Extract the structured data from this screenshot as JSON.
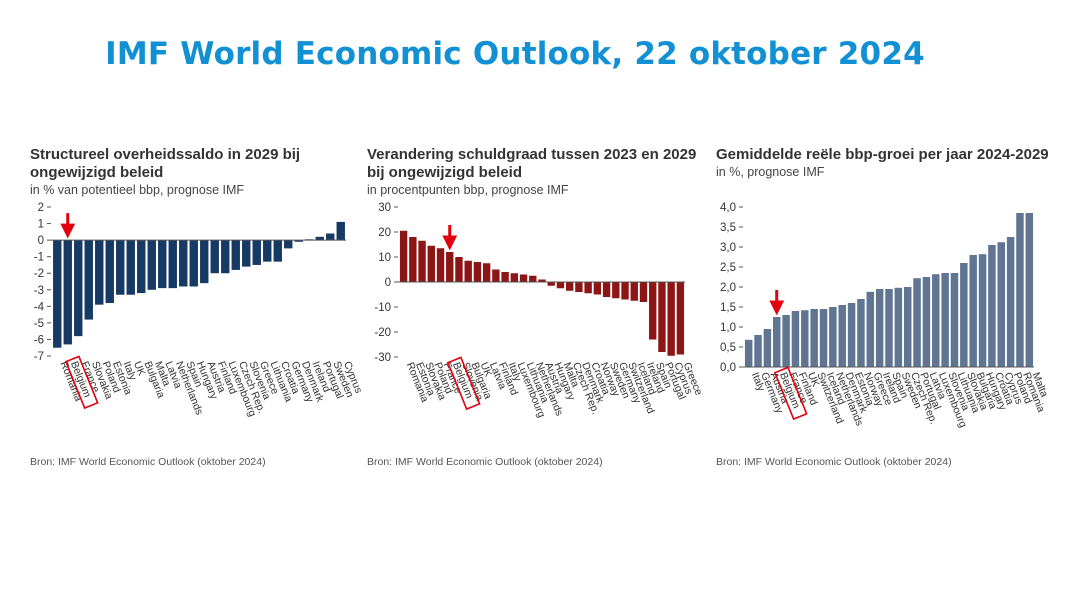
{
  "page": {
    "title": "IMF World Economic Outlook, 22 oktober 2024",
    "title_color": "#1190d4"
  },
  "colors": {
    "highlight": "#e3000f",
    "axis": "#555555"
  },
  "chart_data": [
    {
      "type": "bar",
      "title": "Structureel overheidssaldo in 2029 bij ongewijzigd beleid",
      "subtitle": "in % van potentieel bbp, prognose IMF",
      "source": "Bron: IMF World Economic Outlook (oktober 2024)",
      "color": "#173a64",
      "ylim": [
        -7,
        2
      ],
      "yticks": [
        2,
        1,
        0,
        -1,
        -2,
        -3,
        -4,
        -5,
        -6,
        -7
      ],
      "ytick_labels": [
        "2",
        "1",
        "0",
        "-1",
        "-2",
        "-3",
        "-4",
        "-5",
        "-6",
        "-7"
      ],
      "highlight": "Belgium",
      "categories": [
        "Romania",
        "Belgium",
        "France",
        "Slovakia",
        "Poland",
        "Estonia",
        "Italy",
        "UK",
        "Bulgaria",
        "Malta",
        "Latvia",
        "Netherlands",
        "Spain",
        "Hungary",
        "Austria",
        "Finland",
        "Luxembourg",
        "Czech Rep.",
        "Slovenia",
        "Greece",
        "Lithuania",
        "Croatia",
        "Germany",
        "Denmark",
        "Ireland",
        "Portugal",
        "Sweden",
        "Cyprus"
      ],
      "values": [
        -6.5,
        -6.3,
        -5.8,
        -4.8,
        -3.9,
        -3.8,
        -3.3,
        -3.3,
        -3.2,
        -3.0,
        -2.9,
        -2.9,
        -2.8,
        -2.8,
        -2.6,
        -2.0,
        -2.0,
        -1.8,
        -1.6,
        -1.5,
        -1.3,
        -1.3,
        -0.5,
        -0.1,
        0.05,
        0.2,
        0.4,
        1.1
      ]
    },
    {
      "type": "bar",
      "title": "Verandering schuldgraad tussen 2023 en 2029 bij ongewijzigd beleid",
      "subtitle": "in procentpunten bbp, prognose IMF",
      "source": "Bron: IMF World Economic Outlook (oktober 2024)",
      "color": "#8c1515",
      "ylim": [
        -30,
        30
      ],
      "yticks": [
        30,
        20,
        10,
        0,
        -10,
        -20,
        -30
      ],
      "ytick_labels": [
        "30",
        "20",
        "10",
        "0",
        "-10",
        "-20",
        "-30"
      ],
      "highlight": "Belgium",
      "categories": [
        "Romania",
        "Estonia",
        "Slovakia",
        "Poland",
        "France",
        "Belgium",
        "Slovenia",
        "Bulgaria",
        "UK",
        "Latvia",
        "Finland",
        "Italy",
        "Luxembourg",
        "Lithuania",
        "Netherlands",
        "Austria",
        "Hungary",
        "Malta",
        "Czech Rep.",
        "Denmark",
        "Croatia",
        "Norway",
        "Sweden",
        "Germany",
        "Switzerland",
        "Iceland",
        "Ireland",
        "Spain",
        "Portugal",
        "Cyprus",
        "Greece"
      ],
      "values": [
        20.5,
        18,
        16.5,
        14.5,
        13.5,
        12,
        10,
        8.5,
        8,
        7.5,
        5,
        4,
        3.5,
        3,
        2.5,
        1,
        -1.5,
        -2.5,
        -3.5,
        -4,
        -4.5,
        -5,
        -6,
        -6.5,
        -7,
        -7.5,
        -8,
        -23,
        -28,
        -29.5,
        -29
      ]
    },
    {
      "type": "bar",
      "title": "Gemiddelde reële bbp-groei per jaar 2024-2029",
      "subtitle": "in %, prognose IMF",
      "source": "Bron: IMF World Economic Outlook (oktober 2024)",
      "color": "#5f7592",
      "ylim": [
        0,
        4
      ],
      "yticks": [
        4.0,
        3.5,
        3.0,
        2.5,
        2.0,
        1.5,
        1.0,
        0.5,
        0.0
      ],
      "ytick_labels": [
        "4,0",
        "3,5",
        "3,0",
        "2,5",
        "2,0",
        "1,5",
        "1,0",
        "0,5",
        "0,0"
      ],
      "highlight": "Belgium",
      "categories": [
        "Italy",
        "Germany",
        "Austria",
        "Belgium",
        "France",
        "Finland",
        "UK",
        "Switzerland",
        "Iceland",
        "Netherlands",
        "Denmark",
        "Estonia",
        "Norway",
        "Greece",
        "Ireland",
        "Spain",
        "Sweden",
        "Czech Rep.",
        "Portugal",
        "Latvia",
        "Luxembourg",
        "Slovenia",
        "Lithuania",
        "Slovakia",
        "Bulgaria",
        "Hungary",
        "Croatia",
        "Cyprus",
        "Poland",
        "Romania",
        "Malta"
      ],
      "values": [
        0.68,
        0.8,
        0.95,
        1.25,
        1.3,
        1.4,
        1.42,
        1.45,
        1.45,
        1.5,
        1.55,
        1.6,
        1.7,
        1.88,
        1.95,
        1.95,
        1.98,
        2.0,
        2.22,
        2.25,
        2.32,
        2.35,
        2.35,
        2.6,
        2.8,
        2.82,
        3.05,
        3.12,
        3.25,
        3.85,
        3.85
      ]
    }
  ]
}
